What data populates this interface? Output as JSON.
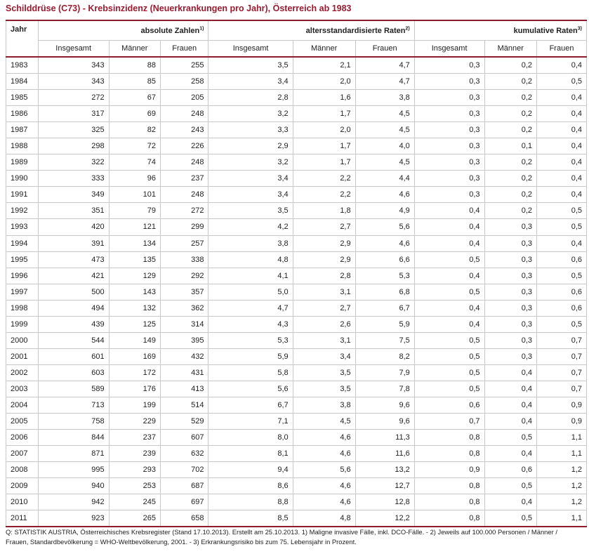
{
  "title": "Schilddrüse (C73) - Krebsinzidenz (Neuerkrankungen pro Jahr), Österreich ab 1983",
  "header": {
    "year": "Jahr",
    "groups": [
      {
        "label": "absolute Zahlen",
        "sup": "1)"
      },
      {
        "label": "altersstandardisierte Raten",
        "sup": "2)"
      },
      {
        "label": "kumulative Raten",
        "sup": "3)"
      }
    ],
    "subcols": [
      "Insgesamt",
      "Männer",
      "Frauen",
      "Insgesamt",
      "Männer",
      "Frauen",
      "Insgesamt",
      "Männer",
      "Frauen"
    ]
  },
  "rows": [
    [
      "1983",
      "343",
      "88",
      "255",
      "3,5",
      "2,1",
      "4,7",
      "0,3",
      "0,2",
      "0,4"
    ],
    [
      "1984",
      "343",
      "85",
      "258",
      "3,4",
      "2,0",
      "4,7",
      "0,3",
      "0,2",
      "0,5"
    ],
    [
      "1985",
      "272",
      "67",
      "205",
      "2,8",
      "1,6",
      "3,8",
      "0,3",
      "0,2",
      "0,4"
    ],
    [
      "1986",
      "317",
      "69",
      "248",
      "3,2",
      "1,7",
      "4,5",
      "0,3",
      "0,2",
      "0,4"
    ],
    [
      "1987",
      "325",
      "82",
      "243",
      "3,3",
      "2,0",
      "4,5",
      "0,3",
      "0,2",
      "0,4"
    ],
    [
      "1988",
      "298",
      "72",
      "226",
      "2,9",
      "1,7",
      "4,0",
      "0,3",
      "0,1",
      "0,4"
    ],
    [
      "1989",
      "322",
      "74",
      "248",
      "3,2",
      "1,7",
      "4,5",
      "0,3",
      "0,2",
      "0,4"
    ],
    [
      "1990",
      "333",
      "96",
      "237",
      "3,4",
      "2,2",
      "4,4",
      "0,3",
      "0,2",
      "0,4"
    ],
    [
      "1991",
      "349",
      "101",
      "248",
      "3,4",
      "2,2",
      "4,6",
      "0,3",
      "0,2",
      "0,4"
    ],
    [
      "1992",
      "351",
      "79",
      "272",
      "3,5",
      "1,8",
      "4,9",
      "0,4",
      "0,2",
      "0,5"
    ],
    [
      "1993",
      "420",
      "121",
      "299",
      "4,2",
      "2,7",
      "5,6",
      "0,4",
      "0,3",
      "0,5"
    ],
    [
      "1994",
      "391",
      "134",
      "257",
      "3,8",
      "2,9",
      "4,6",
      "0,4",
      "0,3",
      "0,4"
    ],
    [
      "1995",
      "473",
      "135",
      "338",
      "4,8",
      "2,9",
      "6,6",
      "0,5",
      "0,3",
      "0,6"
    ],
    [
      "1996",
      "421",
      "129",
      "292",
      "4,1",
      "2,8",
      "5,3",
      "0,4",
      "0,3",
      "0,5"
    ],
    [
      "1997",
      "500",
      "143",
      "357",
      "5,0",
      "3,1",
      "6,8",
      "0,5",
      "0,3",
      "0,6"
    ],
    [
      "1998",
      "494",
      "132",
      "362",
      "4,7",
      "2,7",
      "6,7",
      "0,4",
      "0,3",
      "0,6"
    ],
    [
      "1999",
      "439",
      "125",
      "314",
      "4,3",
      "2,6",
      "5,9",
      "0,4",
      "0,3",
      "0,5"
    ],
    [
      "2000",
      "544",
      "149",
      "395",
      "5,3",
      "3,1",
      "7,5",
      "0,5",
      "0,3",
      "0,7"
    ],
    [
      "2001",
      "601",
      "169",
      "432",
      "5,9",
      "3,4",
      "8,2",
      "0,5",
      "0,3",
      "0,7"
    ],
    [
      "2002",
      "603",
      "172",
      "431",
      "5,8",
      "3,5",
      "7,9",
      "0,5",
      "0,4",
      "0,7"
    ],
    [
      "2003",
      "589",
      "176",
      "413",
      "5,6",
      "3,5",
      "7,8",
      "0,5",
      "0,4",
      "0,7"
    ],
    [
      "2004",
      "713",
      "199",
      "514",
      "6,7",
      "3,8",
      "9,6",
      "0,6",
      "0,4",
      "0,9"
    ],
    [
      "2005",
      "758",
      "229",
      "529",
      "7,1",
      "4,5",
      "9,6",
      "0,7",
      "0,4",
      "0,9"
    ],
    [
      "2006",
      "844",
      "237",
      "607",
      "8,0",
      "4,6",
      "11,3",
      "0,8",
      "0,5",
      "1,1"
    ],
    [
      "2007",
      "871",
      "239",
      "632",
      "8,1",
      "4,6",
      "11,6",
      "0,8",
      "0,4",
      "1,1"
    ],
    [
      "2008",
      "995",
      "293",
      "702",
      "9,4",
      "5,6",
      "13,2",
      "0,9",
      "0,6",
      "1,2"
    ],
    [
      "2009",
      "940",
      "253",
      "687",
      "8,6",
      "4,6",
      "12,7",
      "0,8",
      "0,5",
      "1,2"
    ],
    [
      "2010",
      "942",
      "245",
      "697",
      "8,8",
      "4,6",
      "12,8",
      "0,8",
      "0,4",
      "1,2"
    ],
    [
      "2011",
      "923",
      "265",
      "658",
      "8,5",
      "4,8",
      "12,2",
      "0,8",
      "0,5",
      "1,1"
    ]
  ],
  "footnote": "Q: STATISTIK AUSTRIA, Österreichisches Krebsregister (Stand 17.10.2013). Erstellt am 25.10.2013. 1) Maligne invasive Fälle, inkl. DCO-Fälle. - 2) Jeweils auf 100.000 Personen / Männer / Frauen, Standardbevölkerung = WHO-Weltbevölkerung, 2001. - 3) Erkrankungsrisiko bis zum 75. Lebensjahr in Prozent."
}
